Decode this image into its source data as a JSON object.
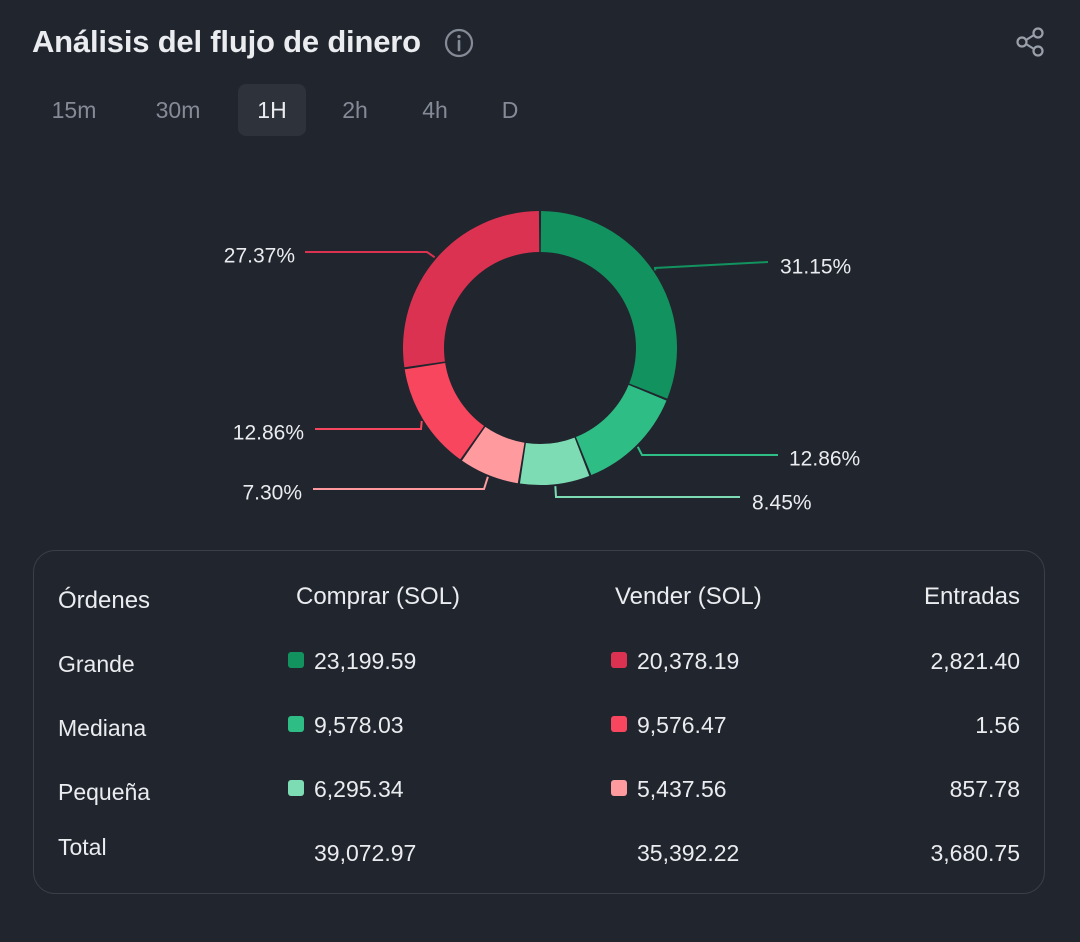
{
  "header": {
    "title": "Análisis del flujo de dinero",
    "info_icon": "info-icon",
    "share_icon": "share-icon"
  },
  "tabs": [
    {
      "label": "15m",
      "active": false
    },
    {
      "label": "30m",
      "active": false
    },
    {
      "label": "1H",
      "active": true
    },
    {
      "label": "2h",
      "active": false
    },
    {
      "label": "4h",
      "active": false
    },
    {
      "label": "D",
      "active": false
    }
  ],
  "chart_data": {
    "type": "pie",
    "donut": true,
    "slices": [
      {
        "label": "31.15%",
        "value": 31.15,
        "color": "#12925f"
      },
      {
        "label": "12.86%",
        "value": 12.86,
        "color": "#2ebd85"
      },
      {
        "label": "8.45%",
        "value": 8.45,
        "color": "#7ddcb3"
      },
      {
        "label": "7.30%",
        "value": 7.3,
        "color": "#ff9b9e"
      },
      {
        "label": "12.86%",
        "value": 12.86,
        "color": "#f7465e"
      },
      {
        "label": "27.37%",
        "value": 27.37,
        "color": "#dc3251"
      }
    ]
  },
  "table": {
    "headers": {
      "orders": "Órdenes",
      "buy": "Comprar (SOL)",
      "sell": "Vender (SOL)",
      "inflow": "Entradas"
    },
    "rows": [
      {
        "name": "Grande",
        "buy": "23,199.59",
        "sell": "20,378.19",
        "inflow": "2,821.40",
        "buy_color": "#12925f",
        "sell_color": "#dc3251"
      },
      {
        "name": "Mediana",
        "buy": "9,578.03",
        "sell": "9,576.47",
        "inflow": "1.56",
        "buy_color": "#2ebd85",
        "sell_color": "#f7465e"
      },
      {
        "name": "Pequeña",
        "buy": "6,295.34",
        "sell": "5,437.56",
        "inflow": "857.78",
        "buy_color": "#7ddcb3",
        "sell_color": "#ff9b9e"
      }
    ],
    "total": {
      "name": "Total",
      "buy": "39,072.97",
      "sell": "35,392.22",
      "inflow": "3,680.75"
    }
  }
}
